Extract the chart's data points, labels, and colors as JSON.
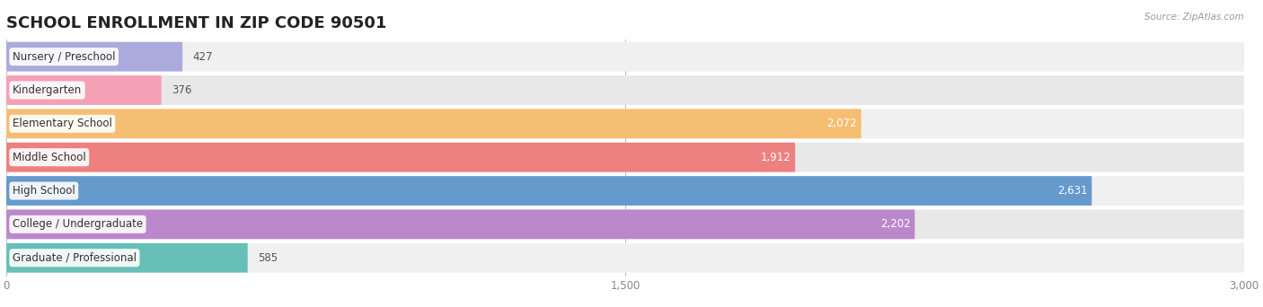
{
  "title": "SCHOOL ENROLLMENT IN ZIP CODE 90501",
  "source": "Source: ZipAtlas.com",
  "categories": [
    "Nursery / Preschool",
    "Kindergarten",
    "Elementary School",
    "Middle School",
    "High School",
    "College / Undergraduate",
    "Graduate / Professional"
  ],
  "values": [
    427,
    376,
    2072,
    1912,
    2631,
    2202,
    585
  ],
  "bar_colors": [
    "#aaaadd",
    "#f5a0b5",
    "#f5be72",
    "#ee8080",
    "#6699cc",
    "#bb88cc",
    "#66c0b8"
  ],
  "bar_bg_color": "#e8e8e8",
  "row_bg_colors": [
    "#f0f0f0",
    "#e8e8e8"
  ],
  "xlim": [
    0,
    3000
  ],
  "xticks": [
    0,
    1500,
    3000
  ],
  "title_fontsize": 13,
  "label_fontsize": 8.5,
  "value_fontsize": 8.5,
  "fig_bg_color": "#ffffff"
}
